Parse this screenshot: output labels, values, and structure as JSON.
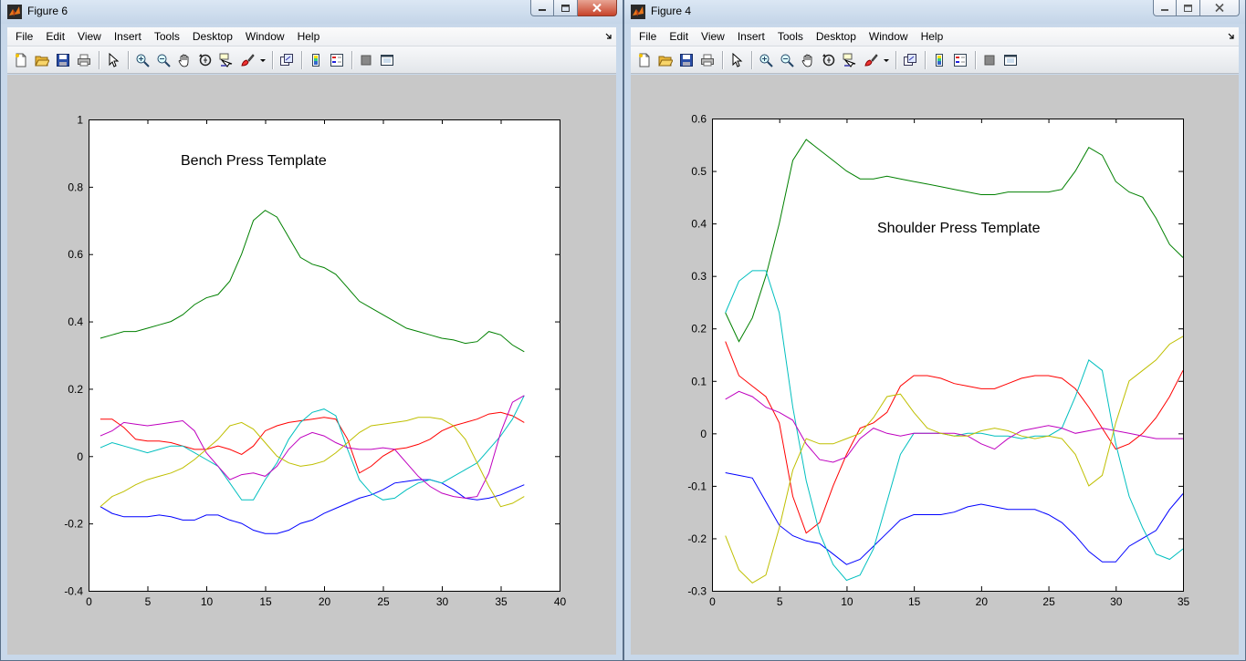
{
  "figures": [
    {
      "title": "Figure 6",
      "menu": [
        "File",
        "Edit",
        "View",
        "Insert",
        "Tools",
        "Desktop",
        "Window",
        "Help"
      ],
      "plot_title": "Bench Press Template",
      "chart_data": {
        "type": "line",
        "title": "Bench Press Template",
        "xlim": [
          0,
          40
        ],
        "ylim": [
          -0.4,
          1
        ],
        "xticks": [
          0,
          5,
          10,
          15,
          20,
          25,
          30,
          35,
          40
        ],
        "yticks": [
          -0.4,
          -0.2,
          0,
          0.2,
          0.4,
          0.6,
          0.8,
          1
        ],
        "xtick_labels": [
          "0",
          "5",
          "10",
          "15",
          "20",
          "25",
          "30",
          "35",
          "40"
        ],
        "ytick_labels": [
          "-0.4",
          "-0.2",
          "0",
          "0.2",
          "0.4",
          "0.6",
          "0.8",
          "1"
        ],
        "x": [
          1,
          2,
          3,
          4,
          5,
          6,
          7,
          8,
          9,
          10,
          11,
          12,
          13,
          14,
          15,
          16,
          17,
          18,
          19,
          20,
          21,
          22,
          23,
          24,
          25,
          26,
          27,
          28,
          29,
          30,
          31,
          32,
          33,
          34,
          35,
          36,
          37
        ],
        "series": [
          {
            "color": "#008000",
            "values": [
              0.35,
              0.36,
              0.37,
              0.37,
              0.38,
              0.39,
              0.4,
              0.42,
              0.45,
              0.47,
              0.48,
              0.52,
              0.6,
              0.7,
              0.73,
              0.71,
              0.65,
              0.59,
              0.57,
              0.56,
              0.54,
              0.5,
              0.46,
              0.44,
              0.42,
              0.4,
              0.38,
              0.37,
              0.36,
              0.35,
              0.345,
              0.335,
              0.34,
              0.37,
              0.36,
              0.33,
              0.31
            ]
          },
          {
            "color": "#0000ff",
            "values": [
              -0.15,
              -0.17,
              -0.18,
              -0.18,
              -0.18,
              -0.175,
              -0.18,
              -0.19,
              -0.19,
              -0.175,
              -0.175,
              -0.19,
              -0.2,
              -0.22,
              -0.23,
              -0.23,
              -0.22,
              -0.2,
              -0.19,
              -0.17,
              -0.155,
              -0.14,
              -0.125,
              -0.115,
              -0.1,
              -0.08,
              -0.075,
              -0.07,
              -0.07,
              -0.08,
              -0.1,
              -0.125,
              -0.13,
              -0.125,
              -0.115,
              -0.1,
              -0.085
            ]
          },
          {
            "color": "#ff0000",
            "values": [
              0.11,
              0.11,
              0.085,
              0.05,
              0.045,
              0.045,
              0.04,
              0.03,
              0.02,
              0.02,
              0.03,
              0.02,
              0.005,
              0.03,
              0.075,
              0.09,
              0.1,
              0.105,
              0.11,
              0.115,
              0.11,
              0.05,
              -0.05,
              -0.03,
              0.0,
              0.02,
              0.025,
              0.035,
              0.05,
              0.075,
              0.09,
              0.1,
              0.11,
              0.125,
              0.13,
              0.12,
              0.1
            ]
          },
          {
            "color": "#00bfbf",
            "values": [
              0.025,
              0.04,
              0.03,
              0.02,
              0.01,
              0.02,
              0.03,
              0.03,
              0.01,
              -0.01,
              -0.03,
              -0.08,
              -0.13,
              -0.13,
              -0.07,
              -0.02,
              0.05,
              0.1,
              0.13,
              0.14,
              0.12,
              0.02,
              -0.07,
              -0.11,
              -0.13,
              -0.125,
              -0.1,
              -0.08,
              -0.07,
              -0.08,
              -0.06,
              -0.04,
              -0.02,
              0.02,
              0.06,
              0.11,
              0.18
            ]
          },
          {
            "color": "#bf00bf",
            "values": [
              0.06,
              0.075,
              0.1,
              0.095,
              0.09,
              0.095,
              0.1,
              0.105,
              0.075,
              0.01,
              -0.03,
              -0.07,
              -0.055,
              -0.05,
              -0.06,
              -0.03,
              0.02,
              0.055,
              0.07,
              0.06,
              0.04,
              0.025,
              0.02,
              0.02,
              0.025,
              0.02,
              -0.02,
              -0.06,
              -0.09,
              -0.11,
              -0.12,
              -0.125,
              -0.12,
              -0.05,
              0.07,
              0.16,
              0.18
            ]
          },
          {
            "color": "#bfbf00",
            "values": [
              -0.15,
              -0.12,
              -0.105,
              -0.085,
              -0.07,
              -0.06,
              -0.05,
              -0.035,
              -0.01,
              0.02,
              0.05,
              0.09,
              0.1,
              0.08,
              0.04,
              0.0,
              -0.02,
              -0.03,
              -0.025,
              -0.015,
              0.01,
              0.04,
              0.07,
              0.09,
              0.095,
              0.1,
              0.105,
              0.115,
              0.115,
              0.11,
              0.09,
              0.05,
              -0.02,
              -0.09,
              -0.15,
              -0.14,
              -0.12
            ]
          }
        ]
      }
    },
    {
      "title": "Figure 4",
      "menu": [
        "File",
        "Edit",
        "View",
        "Insert",
        "Tools",
        "Desktop",
        "Window",
        "Help"
      ],
      "plot_title": "Shoulder Press Template",
      "chart_data": {
        "type": "line",
        "title": "Shoulder Press Template",
        "xlim": [
          0,
          35
        ],
        "ylim": [
          -0.3,
          0.6
        ],
        "xticks": [
          0,
          5,
          10,
          15,
          20,
          25,
          30,
          35
        ],
        "yticks": [
          -0.3,
          -0.2,
          -0.1,
          0,
          0.1,
          0.2,
          0.3,
          0.4,
          0.5,
          0.6
        ],
        "xtick_labels": [
          "0",
          "5",
          "10",
          "15",
          "20",
          "25",
          "30",
          "35"
        ],
        "ytick_labels": [
          "-0.3",
          "-0.2",
          "-0.1",
          "0",
          "0.1",
          "0.2",
          "0.3",
          "0.4",
          "0.5",
          "0.6"
        ],
        "x": [
          1,
          2,
          3,
          4,
          5,
          6,
          7,
          8,
          9,
          10,
          11,
          12,
          13,
          14,
          15,
          16,
          17,
          18,
          19,
          20,
          21,
          22,
          23,
          24,
          25,
          26,
          27,
          28,
          29,
          30,
          31,
          32,
          33,
          34,
          35
        ],
        "series": [
          {
            "color": "#008000",
            "values": [
              0.23,
              0.175,
              0.22,
              0.3,
              0.4,
              0.52,
              0.56,
              0.54,
              0.52,
              0.5,
              0.485,
              0.485,
              0.49,
              0.485,
              0.48,
              0.475,
              0.47,
              0.465,
              0.46,
              0.455,
              0.455,
              0.46,
              0.46,
              0.46,
              0.46,
              0.465,
              0.5,
              0.545,
              0.53,
              0.48,
              0.46,
              0.45,
              0.41,
              0.36,
              0.335
            ]
          },
          {
            "color": "#0000ff",
            "values": [
              -0.075,
              -0.08,
              -0.085,
              -0.13,
              -0.175,
              -0.195,
              -0.205,
              -0.21,
              -0.23,
              -0.25,
              -0.24,
              -0.215,
              -0.19,
              -0.165,
              -0.155,
              -0.155,
              -0.155,
              -0.15,
              -0.14,
              -0.135,
              -0.14,
              -0.145,
              -0.145,
              -0.145,
              -0.155,
              -0.17,
              -0.195,
              -0.225,
              -0.245,
              -0.245,
              -0.215,
              -0.2,
              -0.185,
              -0.145,
              -0.115
            ]
          },
          {
            "color": "#ff0000",
            "values": [
              0.175,
              0.11,
              0.09,
              0.07,
              0.02,
              -0.12,
              -0.19,
              -0.17,
              -0.1,
              -0.04,
              0.01,
              0.02,
              0.04,
              0.09,
              0.11,
              0.11,
              0.105,
              0.095,
              0.09,
              0.085,
              0.085,
              0.095,
              0.105,
              0.11,
              0.11,
              0.105,
              0.085,
              0.05,
              0.01,
              -0.03,
              -0.02,
              0.0,
              0.03,
              0.07,
              0.12
            ]
          },
          {
            "color": "#00bfbf",
            "values": [
              0.23,
              0.29,
              0.31,
              0.31,
              0.23,
              0.05,
              -0.09,
              -0.19,
              -0.25,
              -0.28,
              -0.27,
              -0.22,
              -0.13,
              -0.04,
              0.0,
              0.0,
              0.0,
              -0.005,
              0.0,
              0.0,
              -0.005,
              -0.005,
              -0.01,
              -0.005,
              -0.005,
              0.01,
              0.07,
              0.14,
              0.12,
              -0.02,
              -0.12,
              -0.18,
              -0.23,
              -0.24,
              -0.22
            ]
          },
          {
            "color": "#bf00bf",
            "values": [
              0.065,
              0.08,
              0.07,
              0.05,
              0.04,
              0.025,
              -0.02,
              -0.05,
              -0.055,
              -0.045,
              -0.01,
              0.01,
              0.0,
              -0.005,
              0.0,
              0.0,
              0.0,
              0.0,
              -0.005,
              -0.02,
              -0.03,
              -0.01,
              0.005,
              0.01,
              0.015,
              0.01,
              0.0,
              0.005,
              0.01,
              0.005,
              0.0,
              -0.005,
              -0.01,
              -0.01,
              -0.01
            ]
          },
          {
            "color": "#bfbf00",
            "values": [
              -0.195,
              -0.26,
              -0.285,
              -0.27,
              -0.18,
              -0.07,
              -0.01,
              -0.02,
              -0.02,
              -0.01,
              0.0,
              0.03,
              0.07,
              0.075,
              0.04,
              0.01,
              0.0,
              -0.005,
              -0.005,
              0.005,
              0.01,
              0.005,
              -0.005,
              -0.01,
              -0.005,
              -0.01,
              -0.04,
              -0.1,
              -0.08,
              0.02,
              0.1,
              0.12,
              0.14,
              0.17,
              0.185
            ]
          }
        ]
      }
    }
  ]
}
